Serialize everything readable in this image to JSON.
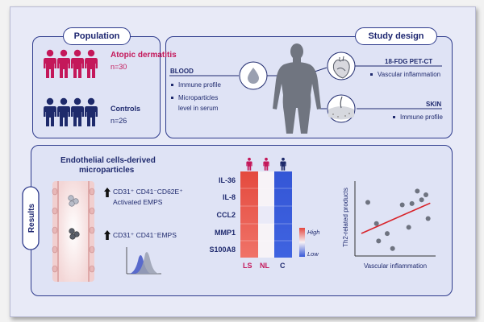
{
  "population": {
    "title": "Population",
    "groups": [
      {
        "name": "Atopic dermatitis",
        "n": "n=30",
        "color": "#c4185a"
      },
      {
        "name": "Controls",
        "n": "n=26",
        "color": "#1e2a6b"
      }
    ]
  },
  "study_design": {
    "title": "Study design",
    "blood": {
      "title": "BLOOD",
      "items": [
        "Immune profile",
        "Microparticles",
        "level in serum"
      ]
    },
    "pet": {
      "title": "18-FDG PET-CT",
      "items": [
        "Vascular inflammation"
      ]
    },
    "skin": {
      "title": "SKIN",
      "items": [
        "Immune profile"
      ]
    }
  },
  "results": {
    "title": "Results",
    "emp_title_1": "Endothelial cells-derived",
    "emp_title_2": "microparticles",
    "emp1_line1": "CD31⁺ CD41⁻CD62E⁺",
    "emp1_line2": "Activated EMPS",
    "emp2": "CD31⁺ CD41⁻EMPS",
    "heatmap": {
      "rows": [
        "IL-36",
        "IL-8",
        "CCL2",
        "MMP1",
        "S100A8"
      ],
      "columns": [
        "LS",
        "NL",
        "C"
      ],
      "legend_high": "High",
      "legend_low": "Low",
      "colors": {
        "high": "#e4463e",
        "low": "#3557d8"
      }
    },
    "scatter": {
      "xlabel": "Vascular inflammation",
      "ylabel": "Th2-related products"
    }
  },
  "chart_data": {
    "type": "scatter",
    "xlabel": "Vascular inflammation",
    "ylabel": "Th2-related products",
    "x": [
      1.2,
      2.0,
      3.5,
      2.2,
      3.0,
      5.0,
      5.3,
      6.2,
      6.8,
      5.8,
      6.6,
      4.4
    ],
    "y": [
      4.3,
      2.6,
      0.6,
      1.2,
      1.8,
      2.3,
      4.2,
      4.5,
      3.0,
      5.2,
      4.9,
      4.1
    ],
    "trend": true
  }
}
